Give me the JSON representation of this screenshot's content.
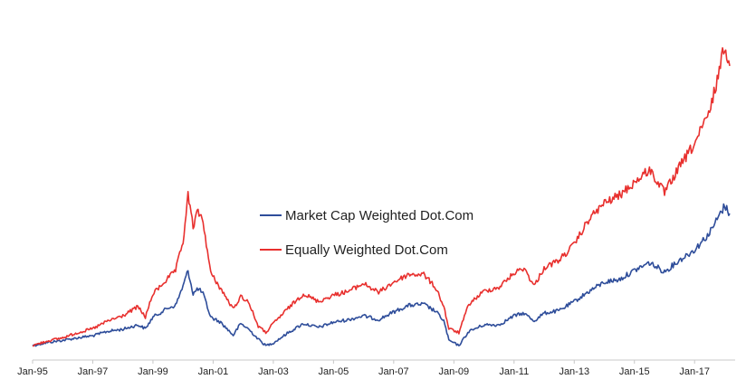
{
  "chart_data": {
    "type": "line",
    "title": "",
    "xlabel": "",
    "ylabel": "",
    "x_ticks": [
      "Jan-95",
      "Jan-97",
      "Jan-99",
      "Jan-01",
      "Jan-03",
      "Jan-05",
      "Jan-07",
      "Jan-09",
      "Jan-11",
      "Jan-13",
      "Jan-15",
      "Jan-17"
    ],
    "x_range": [
      "1995-01",
      "2018-03"
    ],
    "y_axis_visible": false,
    "grid": false,
    "legend_position": "center",
    "series": [
      {
        "name": "Market Cap Weighted Dot.Com",
        "color": "#2e4d9a",
        "points": [
          [
            "1995-01",
            100
          ],
          [
            "1995-07",
            112
          ],
          [
            "1996-01",
            120
          ],
          [
            "1996-07",
            130
          ],
          [
            "1997-01",
            138
          ],
          [
            "1997-07",
            155
          ],
          [
            "1998-01",
            163
          ],
          [
            "1998-07",
            180
          ],
          [
            "1998-10",
            165
          ],
          [
            "1999-01",
            210
          ],
          [
            "1999-07",
            245
          ],
          [
            "1999-10",
            255
          ],
          [
            "2000-01",
            330
          ],
          [
            "2000-03",
            390
          ],
          [
            "2000-05",
            300
          ],
          [
            "2000-07",
            320
          ],
          [
            "2000-09",
            300
          ],
          [
            "2000-12",
            210
          ],
          [
            "2001-04",
            190
          ],
          [
            "2001-09",
            140
          ],
          [
            "2001-12",
            185
          ],
          [
            "2002-03",
            165
          ],
          [
            "2002-07",
            125
          ],
          [
            "2002-10",
            100
          ],
          [
            "2003-01",
            110
          ],
          [
            "2003-07",
            150
          ],
          [
            "2004-01",
            185
          ],
          [
            "2004-07",
            170
          ],
          [
            "2005-01",
            190
          ],
          [
            "2005-07",
            200
          ],
          [
            "2006-01",
            215
          ],
          [
            "2006-07",
            200
          ],
          [
            "2007-01",
            230
          ],
          [
            "2007-07",
            255
          ],
          [
            "2008-01",
            260
          ],
          [
            "2008-06",
            230
          ],
          [
            "2008-09",
            195
          ],
          [
            "2008-11",
            120
          ],
          [
            "2009-03",
            100
          ],
          [
            "2009-07",
            155
          ],
          [
            "2010-01",
            180
          ],
          [
            "2010-07",
            180
          ],
          [
            "2011-01",
            215
          ],
          [
            "2011-05",
            225
          ],
          [
            "2011-09",
            195
          ],
          [
            "2012-01",
            225
          ],
          [
            "2012-07",
            235
          ],
          [
            "2013-01",
            270
          ],
          [
            "2013-07",
            310
          ],
          [
            "2014-01",
            345
          ],
          [
            "2014-07",
            355
          ],
          [
            "2015-01",
            390
          ],
          [
            "2015-07",
            420
          ],
          [
            "2016-01",
            385
          ],
          [
            "2016-07",
            430
          ],
          [
            "2017-01",
            470
          ],
          [
            "2017-07",
            535
          ],
          [
            "2018-01",
            640
          ],
          [
            "2018-03",
            610
          ]
        ]
      },
      {
        "name": "Equally Weighted Dot.Com",
        "color": "#e8302e",
        "points": [
          [
            "1995-01",
            100
          ],
          [
            "1995-07",
            118
          ],
          [
            "1996-01",
            130
          ],
          [
            "1996-07",
            150
          ],
          [
            "1997-01",
            165
          ],
          [
            "1997-07",
            195
          ],
          [
            "1998-01",
            215
          ],
          [
            "1998-07",
            250
          ],
          [
            "1998-10",
            210
          ],
          [
            "1999-01",
            300
          ],
          [
            "1999-07",
            360
          ],
          [
            "1999-10",
            390
          ],
          [
            "2000-01",
            500
          ],
          [
            "2000-03",
            680
          ],
          [
            "2000-05",
            560
          ],
          [
            "2000-07",
            620
          ],
          [
            "2000-09",
            580
          ],
          [
            "2000-12",
            380
          ],
          [
            "2001-04",
            320
          ],
          [
            "2001-09",
            240
          ],
          [
            "2001-12",
            290
          ],
          [
            "2002-03",
            270
          ],
          [
            "2002-07",
            175
          ],
          [
            "2002-10",
            150
          ],
          [
            "2003-01",
            185
          ],
          [
            "2003-07",
            245
          ],
          [
            "2004-01",
            300
          ],
          [
            "2004-07",
            270
          ],
          [
            "2005-01",
            295
          ],
          [
            "2005-07",
            310
          ],
          [
            "2006-01",
            340
          ],
          [
            "2006-07",
            305
          ],
          [
            "2007-01",
            345
          ],
          [
            "2007-07",
            375
          ],
          [
            "2008-01",
            375
          ],
          [
            "2008-06",
            320
          ],
          [
            "2008-09",
            250
          ],
          [
            "2008-11",
            165
          ],
          [
            "2009-03",
            150
          ],
          [
            "2009-07",
            260
          ],
          [
            "2010-01",
            310
          ],
          [
            "2010-07",
            325
          ],
          [
            "2011-01",
            380
          ],
          [
            "2011-05",
            400
          ],
          [
            "2011-09",
            330
          ],
          [
            "2012-01",
            400
          ],
          [
            "2012-07",
            430
          ],
          [
            "2013-01",
            490
          ],
          [
            "2013-07",
            590
          ],
          [
            "2014-01",
            650
          ],
          [
            "2014-07",
            680
          ],
          [
            "2015-01",
            730
          ],
          [
            "2015-07",
            780
          ],
          [
            "2016-01",
            690
          ],
          [
            "2016-07",
            790
          ],
          [
            "2017-01",
            880
          ],
          [
            "2017-07",
            1000
          ],
          [
            "2018-01",
            1260
          ],
          [
            "2018-03",
            1180
          ]
        ]
      }
    ]
  }
}
